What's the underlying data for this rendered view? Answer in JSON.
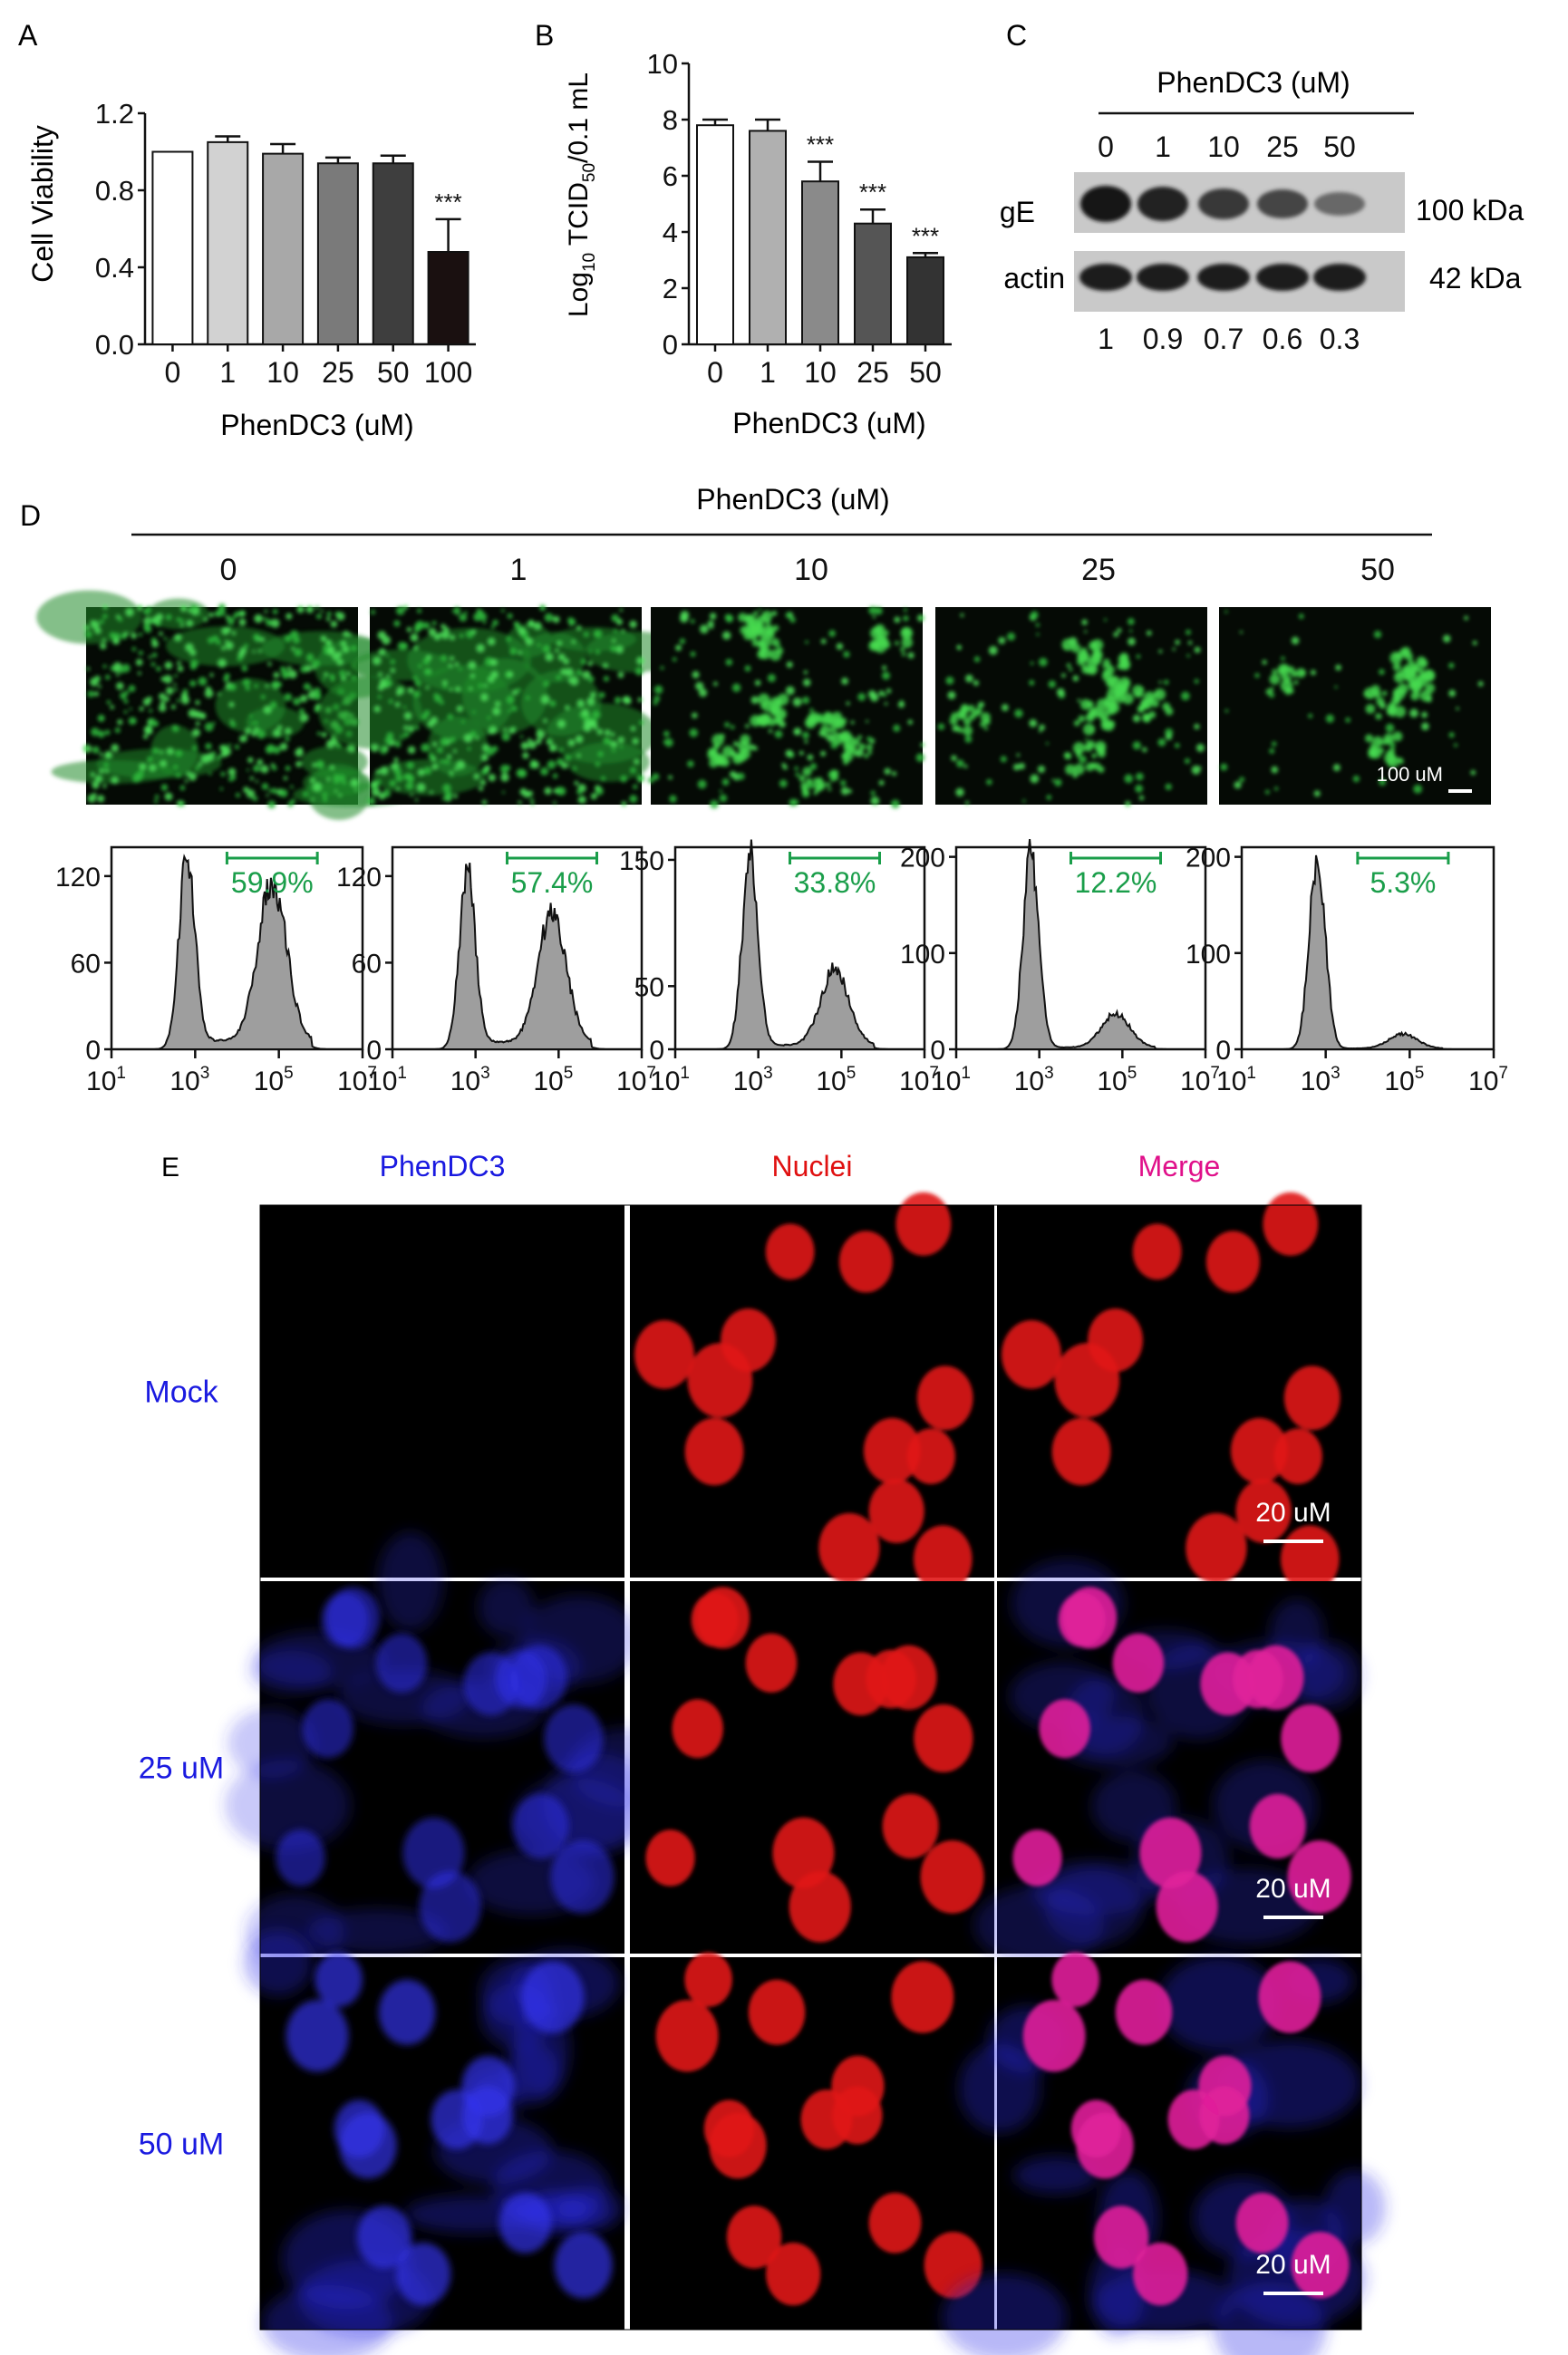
{
  "panel_letters": {
    "A": "A",
    "B": "B",
    "C": "C",
    "D": "D",
    "E": "E"
  },
  "chart_data": [
    {
      "panel": "A",
      "type": "bar",
      "categories": [
        "0",
        "1",
        "10",
        "25",
        "50",
        "100"
      ],
      "values": [
        1.0,
        1.05,
        0.99,
        0.94,
        0.94,
        0.48
      ],
      "errors": [
        0,
        0.03,
        0.05,
        0.03,
        0.04,
        0.17
      ],
      "significance": [
        "",
        "",
        "",
        "",
        "",
        "***"
      ],
      "bar_colors": [
        "#ffffff",
        "#d2d2d2",
        "#a8a8a8",
        "#7a7a7a",
        "#3e3e3e",
        "#1a1010"
      ],
      "xlabel": "PhenDC3 (uM)",
      "ylabel": "Cell Viability",
      "ylim": [
        0,
        1.2
      ],
      "yticks": [
        "0.0",
        "0.4",
        "0.8",
        "1.2"
      ],
      "grid": false
    },
    {
      "panel": "B",
      "type": "bar",
      "categories": [
        "0",
        "1",
        "10",
        "25",
        "50"
      ],
      "values": [
        7.8,
        7.6,
        5.8,
        4.3,
        3.1
      ],
      "errors": [
        0.2,
        0.4,
        0.7,
        0.5,
        0.15
      ],
      "significance": [
        "",
        "",
        "***",
        "***",
        "***"
      ],
      "bar_colors": [
        "#ffffff",
        "#b0b0b0",
        "#8a8a8a",
        "#555555",
        "#333333"
      ],
      "xlabel": "PhenDC3 (uM)",
      "ylabel_parts": [
        "Log",
        "10",
        " TCID",
        "50",
        "/0.1 mL"
      ],
      "ylim": [
        0,
        10
      ],
      "yticks": [
        "0",
        "2",
        "4",
        "6",
        "8",
        "10"
      ],
      "grid": false
    },
    {
      "panel": "D",
      "type": "area",
      "xlabel_ticks": [
        "10",
        "1",
        "10",
        "3",
        "10",
        "5",
        "10",
        "7"
      ],
      "hists": [
        {
          "percent": "59.9%",
          "yticks": [
            "0",
            "60",
            "120"
          ],
          "ymax": 140
        },
        {
          "percent": "57.4%",
          "yticks": [
            "0",
            "60",
            "120"
          ],
          "ymax": 140
        },
        {
          "percent": "33.8%",
          "yticks": [
            "0",
            "50",
            "150"
          ],
          "ymax": 160
        },
        {
          "percent": "12.2%",
          "yticks": [
            "0",
            "100",
            "200"
          ],
          "ymax": 210
        },
        {
          "percent": "5.3%",
          "yticks": [
            "0",
            "100",
            "200"
          ],
          "ymax": 210
        }
      ]
    }
  ],
  "panel_c": {
    "header": "PhenDC3 (uM)",
    "lanes": [
      "0",
      "1",
      "10",
      "25",
      "50"
    ],
    "row_labels": [
      "gE",
      "actin"
    ],
    "sizes": [
      "100 kDa",
      "42 kDa"
    ],
    "ratios": [
      "1",
      "0.9",
      "0.7",
      "0.6",
      "0.3"
    ],
    "ge_intensity": [
      1,
      0.9,
      0.7,
      0.6,
      0.3
    ]
  },
  "panel_d": {
    "header": "PhenDC3 (uM)",
    "columns": [
      "0",
      "1",
      "10",
      "25",
      "50"
    ],
    "scale_label": "100 uM",
    "fluorescence_density": [
      1,
      0.85,
      0.35,
      0.25,
      0.12
    ]
  },
  "panel_e": {
    "column_headers": [
      "PhenDC3",
      "Nuclei",
      "Merge"
    ],
    "row_labels": [
      "Mock",
      "25 uM",
      "50 uM"
    ],
    "scale_label": "20 uM",
    "colors": {
      "blue": "#1a1ae0",
      "red": "#e01010",
      "magenta": "#e0108a"
    }
  }
}
